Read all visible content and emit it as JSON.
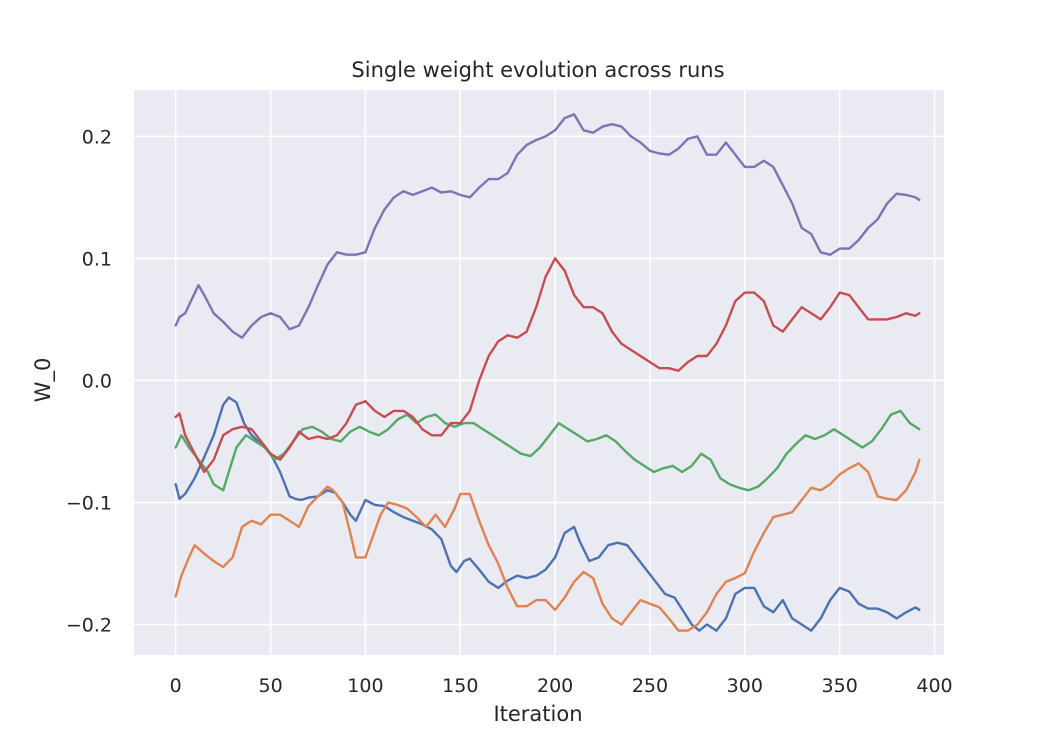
{
  "chart_data": {
    "type": "line",
    "title": "Single weight evolution across runs",
    "xlabel": "Iteration",
    "ylabel": "W_0",
    "xlim": [
      -22,
      405
    ],
    "ylim": [
      -0.225,
      0.238
    ],
    "xticks": [
      0,
      50,
      100,
      150,
      200,
      250,
      300,
      350,
      400
    ],
    "xtick_labels": [
      "0",
      "50",
      "100",
      "150",
      "200",
      "250",
      "300",
      "350",
      "400"
    ],
    "yticks": [
      -0.2,
      -0.1,
      0.0,
      0.1,
      0.2
    ],
    "ytick_labels": [
      "−0.2",
      "−0.1",
      "0.0",
      "0.1",
      "0.2"
    ],
    "grid": true,
    "background": "#eaeaf2",
    "series": [
      {
        "color": "#4c72b0",
        "x": [
          0,
          2,
          5,
          10,
          15,
          20,
          25,
          28,
          32,
          36,
          40,
          45,
          50,
          55,
          60,
          63,
          66,
          70,
          75,
          80,
          84,
          88,
          92,
          95,
          100,
          105,
          110,
          115,
          120,
          125,
          130,
          135,
          140,
          145,
          148,
          152,
          155,
          160,
          165,
          170,
          175,
          180,
          185,
          190,
          195,
          200,
          205,
          210,
          213,
          218,
          223,
          228,
          233,
          238,
          243,
          248,
          253,
          258,
          263,
          268,
          272,
          276,
          280,
          285,
          290,
          295,
          300,
          305,
          310,
          315,
          320,
          325,
          330,
          335,
          340,
          345,
          350,
          355,
          360,
          365,
          370,
          375,
          380,
          385,
          390,
          392
        ],
        "y": [
          -0.085,
          -0.097,
          -0.093,
          -0.08,
          -0.063,
          -0.045,
          -0.02,
          -0.014,
          -0.018,
          -0.035,
          -0.045,
          -0.052,
          -0.06,
          -0.075,
          -0.095,
          -0.097,
          -0.098,
          -0.096,
          -0.095,
          -0.09,
          -0.092,
          -0.1,
          -0.11,
          -0.115,
          -0.098,
          -0.102,
          -0.103,
          -0.108,
          -0.112,
          -0.115,
          -0.118,
          -0.122,
          -0.13,
          -0.152,
          -0.157,
          -0.148,
          -0.146,
          -0.155,
          -0.165,
          -0.17,
          -0.164,
          -0.16,
          -0.162,
          -0.16,
          -0.155,
          -0.145,
          -0.125,
          -0.12,
          -0.132,
          -0.148,
          -0.145,
          -0.135,
          -0.133,
          -0.135,
          -0.145,
          -0.155,
          -0.165,
          -0.175,
          -0.178,
          -0.19,
          -0.2,
          -0.205,
          -0.2,
          -0.205,
          -0.195,
          -0.175,
          -0.17,
          -0.17,
          -0.185,
          -0.19,
          -0.18,
          -0.195,
          -0.2,
          -0.205,
          -0.195,
          -0.18,
          -0.17,
          -0.173,
          -0.183,
          -0.187,
          -0.187,
          -0.19,
          -0.195,
          -0.19,
          -0.186,
          -0.188
        ]
      },
      {
        "color": "#dd8452",
        "x": [
          0,
          3,
          7,
          10,
          15,
          20,
          25,
          30,
          35,
          40,
          45,
          50,
          55,
          60,
          65,
          70,
          75,
          80,
          83,
          88,
          92,
          95,
          100,
          103,
          108,
          112,
          117,
          122,
          127,
          132,
          137,
          142,
          147,
          150,
          155,
          160,
          165,
          170,
          175,
          180,
          185,
          190,
          195,
          200,
          205,
          210,
          215,
          220,
          225,
          230,
          235,
          240,
          245,
          250,
          255,
          260,
          265,
          270,
          275,
          280,
          285,
          290,
          295,
          300,
          305,
          310,
          315,
          320,
          325,
          330,
          335,
          340,
          345,
          350,
          355,
          360,
          365,
          370,
          375,
          380,
          385,
          390,
          392
        ],
        "y": [
          -0.177,
          -0.16,
          -0.145,
          -0.135,
          -0.142,
          -0.148,
          -0.153,
          -0.145,
          -0.12,
          -0.115,
          -0.118,
          -0.11,
          -0.11,
          -0.115,
          -0.12,
          -0.103,
          -0.095,
          -0.087,
          -0.09,
          -0.1,
          -0.125,
          -0.145,
          -0.145,
          -0.132,
          -0.11,
          -0.1,
          -0.102,
          -0.105,
          -0.112,
          -0.12,
          -0.11,
          -0.12,
          -0.105,
          -0.093,
          -0.093,
          -0.115,
          -0.135,
          -0.15,
          -0.17,
          -0.185,
          -0.185,
          -0.18,
          -0.18,
          -0.188,
          -0.178,
          -0.165,
          -0.157,
          -0.162,
          -0.183,
          -0.195,
          -0.2,
          -0.19,
          -0.18,
          -0.183,
          -0.186,
          -0.195,
          -0.205,
          -0.205,
          -0.2,
          -0.19,
          -0.175,
          -0.165,
          -0.162,
          -0.158,
          -0.14,
          -0.125,
          -0.112,
          -0.11,
          -0.108,
          -0.098,
          -0.088,
          -0.09,
          -0.085,
          -0.077,
          -0.072,
          -0.068,
          -0.075,
          -0.095,
          -0.097,
          -0.098,
          -0.09,
          -0.075,
          -0.065
        ]
      },
      {
        "color": "#55a868",
        "x": [
          0,
          3,
          7,
          12,
          17,
          20,
          25,
          28,
          32,
          37,
          42,
          47,
          52,
          57,
          62,
          67,
          72,
          77,
          82,
          87,
          92,
          97,
          102,
          107,
          112,
          117,
          122,
          127,
          132,
          137,
          142,
          147,
          152,
          157,
          162,
          167,
          172,
          177,
          182,
          187,
          192,
          197,
          202,
          207,
          212,
          217,
          222,
          227,
          232,
          237,
          242,
          247,
          252,
          257,
          262,
          267,
          272,
          277,
          282,
          287,
          292,
          297,
          302,
          307,
          312,
          317,
          322,
          327,
          332,
          337,
          342,
          347,
          352,
          357,
          362,
          367,
          372,
          377,
          382,
          387,
          392
        ],
        "y": [
          -0.055,
          -0.045,
          -0.055,
          -0.065,
          -0.075,
          -0.085,
          -0.09,
          -0.075,
          -0.055,
          -0.045,
          -0.05,
          -0.055,
          -0.065,
          -0.06,
          -0.05,
          -0.04,
          -0.038,
          -0.042,
          -0.048,
          -0.05,
          -0.042,
          -0.038,
          -0.042,
          -0.045,
          -0.04,
          -0.032,
          -0.028,
          -0.035,
          -0.03,
          -0.028,
          -0.035,
          -0.038,
          -0.035,
          -0.035,
          -0.04,
          -0.045,
          -0.05,
          -0.055,
          -0.06,
          -0.062,
          -0.055,
          -0.045,
          -0.035,
          -0.04,
          -0.045,
          -0.05,
          -0.048,
          -0.045,
          -0.05,
          -0.058,
          -0.065,
          -0.07,
          -0.075,
          -0.072,
          -0.07,
          -0.075,
          -0.07,
          -0.06,
          -0.065,
          -0.08,
          -0.085,
          -0.088,
          -0.09,
          -0.087,
          -0.08,
          -0.072,
          -0.06,
          -0.052,
          -0.045,
          -0.048,
          -0.045,
          -0.04,
          -0.045,
          -0.05,
          -0.055,
          -0.05,
          -0.04,
          -0.028,
          -0.025,
          -0.035,
          -0.04
        ]
      },
      {
        "color": "#c44e52",
        "x": [
          0,
          2,
          5,
          10,
          15,
          20,
          25,
          30,
          35,
          40,
          45,
          50,
          55,
          60,
          65,
          70,
          75,
          80,
          85,
          90,
          95,
          100,
          105,
          110,
          115,
          120,
          125,
          130,
          135,
          140,
          145,
          150,
          155,
          160,
          165,
          170,
          175,
          180,
          185,
          190,
          195,
          200,
          205,
          210,
          215,
          220,
          225,
          230,
          235,
          240,
          245,
          250,
          255,
          260,
          265,
          270,
          275,
          280,
          285,
          290,
          295,
          300,
          305,
          310,
          315,
          320,
          325,
          330,
          335,
          340,
          345,
          350,
          355,
          360,
          365,
          370,
          375,
          380,
          385,
          390,
          392
        ],
        "y": [
          -0.03,
          -0.027,
          -0.045,
          -0.06,
          -0.075,
          -0.065,
          -0.045,
          -0.04,
          -0.038,
          -0.04,
          -0.05,
          -0.06,
          -0.065,
          -0.055,
          -0.042,
          -0.048,
          -0.046,
          -0.048,
          -0.045,
          -0.035,
          -0.02,
          -0.017,
          -0.025,
          -0.03,
          -0.025,
          -0.025,
          -0.03,
          -0.04,
          -0.045,
          -0.045,
          -0.035,
          -0.035,
          -0.025,
          0.0,
          0.02,
          0.032,
          0.037,
          0.035,
          0.04,
          0.06,
          0.085,
          0.1,
          0.09,
          0.07,
          0.06,
          0.06,
          0.055,
          0.04,
          0.03,
          0.025,
          0.02,
          0.015,
          0.01,
          0.01,
          0.008,
          0.015,
          0.02,
          0.02,
          0.03,
          0.045,
          0.065,
          0.072,
          0.072,
          0.065,
          0.045,
          0.04,
          0.05,
          0.06,
          0.055,
          0.05,
          0.06,
          0.072,
          0.07,
          0.06,
          0.05,
          0.05,
          0.05,
          0.052,
          0.055,
          0.053,
          0.055
        ]
      },
      {
        "color": "#8172b3",
        "x": [
          0,
          2,
          5,
          8,
          12,
          15,
          20,
          25,
          30,
          35,
          40,
          45,
          50,
          55,
          60,
          65,
          70,
          75,
          80,
          85,
          90,
          95,
          100,
          105,
          110,
          115,
          120,
          125,
          130,
          135,
          140,
          145,
          150,
          155,
          160,
          165,
          170,
          175,
          180,
          185,
          190,
          195,
          200,
          205,
          210,
          215,
          220,
          225,
          230,
          235,
          240,
          245,
          250,
          255,
          260,
          265,
          270,
          275,
          280,
          285,
          290,
          295,
          300,
          305,
          310,
          315,
          320,
          325,
          330,
          335,
          340,
          345,
          350,
          355,
          360,
          365,
          370,
          375,
          380,
          385,
          390,
          392
        ],
        "y": [
          0.045,
          0.052,
          0.055,
          0.065,
          0.078,
          0.07,
          0.055,
          0.048,
          0.04,
          0.035,
          0.045,
          0.052,
          0.055,
          0.052,
          0.042,
          0.045,
          0.06,
          0.078,
          0.095,
          0.105,
          0.103,
          0.103,
          0.105,
          0.125,
          0.14,
          0.15,
          0.155,
          0.152,
          0.155,
          0.158,
          0.154,
          0.155,
          0.152,
          0.15,
          0.158,
          0.165,
          0.165,
          0.17,
          0.185,
          0.193,
          0.197,
          0.2,
          0.205,
          0.215,
          0.218,
          0.205,
          0.203,
          0.208,
          0.21,
          0.208,
          0.2,
          0.195,
          0.188,
          0.186,
          0.185,
          0.19,
          0.198,
          0.2,
          0.185,
          0.185,
          0.195,
          0.185,
          0.175,
          0.175,
          0.18,
          0.175,
          0.16,
          0.145,
          0.125,
          0.12,
          0.105,
          0.103,
          0.108,
          0.108,
          0.115,
          0.125,
          0.132,
          0.145,
          0.153,
          0.152,
          0.15,
          0.148
        ]
      }
    ]
  }
}
